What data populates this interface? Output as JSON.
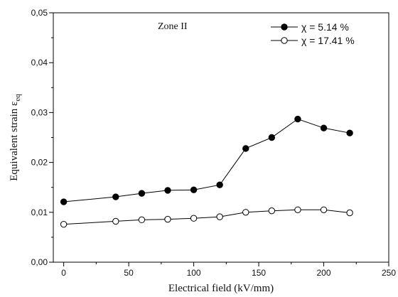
{
  "chart_data": {
    "type": "line",
    "annotation": "Zone II",
    "xlabel": "Electrical field (kV/mm)",
    "ylabel_main": "Equivalent strain ε",
    "ylabel_sub": "eq",
    "xlim": [
      -8,
      250
    ],
    "ylim": [
      0,
      0.05
    ],
    "x_ticks": [
      0,
      50,
      100,
      150,
      200,
      250
    ],
    "x_tick_labels": [
      "0",
      "50",
      "100",
      "150",
      "200",
      "250"
    ],
    "y_ticks": [
      0,
      0.01,
      0.02,
      0.03,
      0.04,
      0.05
    ],
    "y_tick_labels": [
      "0,00",
      "0,01",
      "0,02",
      "0,03",
      "0,04",
      "0,05"
    ],
    "grid": false,
    "legend_position": "top-right",
    "series": [
      {
        "name": "χ = 5.14 %",
        "marker": "filled-circle",
        "x": [
          0,
          40,
          60,
          80,
          100,
          120,
          140,
          160,
          180,
          200,
          220
        ],
        "y": [
          0.0121,
          0.0131,
          0.0138,
          0.0144,
          0.0145,
          0.0155,
          0.0228,
          0.025,
          0.0287,
          0.0269,
          0.0259
        ]
      },
      {
        "name": "χ = 17.41 %",
        "marker": "open-circle",
        "x": [
          0,
          40,
          60,
          80,
          100,
          120,
          140,
          160,
          180,
          200,
          220
        ],
        "y": [
          0.0076,
          0.0082,
          0.0085,
          0.0086,
          0.0088,
          0.0091,
          0.01,
          0.0103,
          0.0105,
          0.0105,
          0.0099
        ]
      }
    ]
  }
}
